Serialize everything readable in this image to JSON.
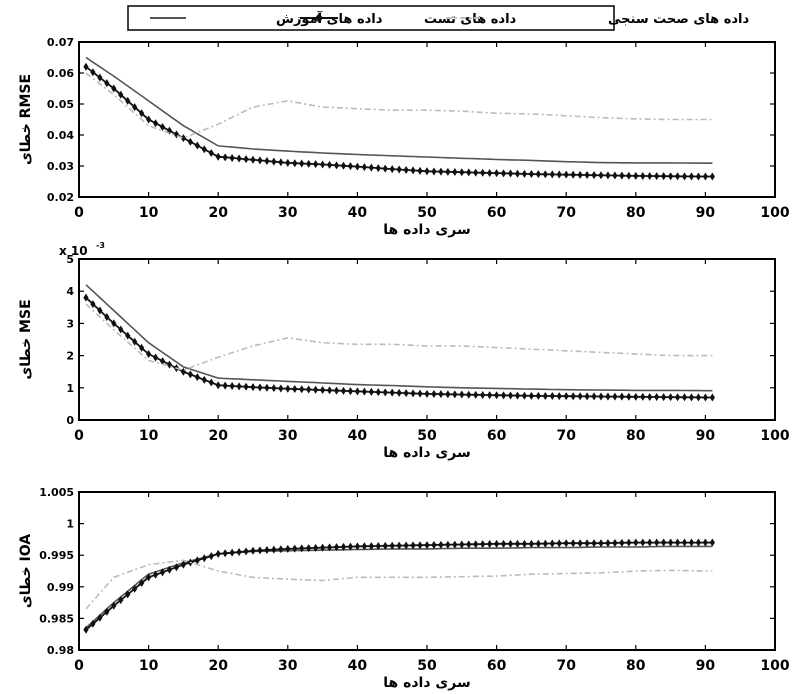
{
  "legend": {
    "items": [
      {
        "label": "داده های آموزش",
        "color": "#555555",
        "style": "solid"
      },
      {
        "label": "داده های تست",
        "color": "#111111",
        "style": "diamond-markers"
      },
      {
        "label": "داده های صحت سنجی",
        "color": "#bbbbbb",
        "style": "dash-dot"
      }
    ]
  },
  "chart_data": [
    {
      "type": "line",
      "title": "",
      "xlabel": "سری داده ها",
      "ylabel": "خطای RMSE",
      "xlim": [
        0,
        100
      ],
      "ylim": [
        0.02,
        0.07
      ],
      "xticks": [
        "0",
        "10",
        "20",
        "30",
        "40",
        "50",
        "60",
        "70",
        "80",
        "90",
        "100"
      ],
      "yticks": [
        "0.02",
        "0.03",
        "0.04",
        "0.05",
        "0.06",
        "0.07"
      ],
      "exponent_label": "",
      "grid": false,
      "x": [
        1,
        5,
        10,
        15,
        20,
        25,
        30,
        35,
        40,
        45,
        50,
        55,
        60,
        65,
        70,
        75,
        80,
        85,
        90,
        91
      ],
      "series": [
        {
          "name": "داده های آموزش",
          "values": [
            0.065,
            0.059,
            0.051,
            0.043,
            0.0365,
            0.0355,
            0.0348,
            0.0342,
            0.0337,
            0.0333,
            0.0329,
            0.0325,
            0.0321,
            0.0318,
            0.0314,
            0.0311,
            0.031,
            0.031,
            0.0309,
            0.0309
          ]
        },
        {
          "name": "داده های تست",
          "values": [
            0.062,
            0.055,
            0.045,
            0.039,
            0.033,
            0.032,
            0.031,
            0.0305,
            0.0298,
            0.029,
            0.0283,
            0.028,
            0.0277,
            0.0274,
            0.0272,
            0.027,
            0.0268,
            0.0267,
            0.0266,
            0.0266
          ]
        },
        {
          "name": "داده های صحت سنجی",
          "values": [
            0.06,
            0.053,
            0.043,
            0.039,
            0.0435,
            0.049,
            0.051,
            0.049,
            0.0485,
            0.048,
            0.048,
            0.0477,
            0.047,
            0.0468,
            0.0462,
            0.0456,
            0.0452,
            0.045,
            0.045,
            0.045
          ]
        }
      ]
    },
    {
      "type": "line",
      "title": "",
      "xlabel": "سری داده ها",
      "ylabel": "خطای MSE",
      "xlim": [
        0,
        100
      ],
      "ylim": [
        0,
        5
      ],
      "xticks": [
        "0",
        "10",
        "20",
        "30",
        "40",
        "50",
        "60",
        "70",
        "80",
        "90",
        "100"
      ],
      "yticks": [
        "0",
        "1",
        "2",
        "3",
        "4",
        "5"
      ],
      "exponent_label": "x 10",
      "exponent_power": "-3",
      "grid": false,
      "x": [
        1,
        5,
        10,
        15,
        20,
        25,
        30,
        35,
        40,
        45,
        50,
        55,
        60,
        65,
        70,
        75,
        80,
        85,
        90,
        91
      ],
      "series": [
        {
          "name": "داده های آموزش",
          "values": [
            4.2,
            3.4,
            2.4,
            1.65,
            1.3,
            1.25,
            1.2,
            1.15,
            1.1,
            1.07,
            1.03,
            1.0,
            0.98,
            0.96,
            0.94,
            0.93,
            0.92,
            0.92,
            0.91,
            0.91
          ]
        },
        {
          "name": "داده های تست",
          "values": [
            3.8,
            3.0,
            2.05,
            1.5,
            1.08,
            1.02,
            0.97,
            0.93,
            0.89,
            0.85,
            0.81,
            0.79,
            0.77,
            0.75,
            0.74,
            0.73,
            0.72,
            0.71,
            0.7,
            0.7
          ]
        },
        {
          "name": "داده های صحت سنجی",
          "values": [
            3.6,
            2.8,
            1.85,
            1.55,
            1.95,
            2.3,
            2.55,
            2.4,
            2.35,
            2.35,
            2.3,
            2.3,
            2.25,
            2.2,
            2.15,
            2.1,
            2.05,
            2.0,
            2.0,
            2.0
          ]
        }
      ]
    },
    {
      "type": "line",
      "title": "",
      "xlabel": "سری داده ها",
      "ylabel": "خطای IOA",
      "xlim": [
        0,
        100
      ],
      "ylim": [
        0.98,
        1.005
      ],
      "xticks": [
        "0",
        "10",
        "20",
        "30",
        "40",
        "50",
        "60",
        "70",
        "80",
        "90",
        "100"
      ],
      "yticks": [
        "0.98",
        "0.985",
        "0.99",
        "0.995",
        "1",
        "1.005"
      ],
      "exponent_label": "",
      "grid": false,
      "x": [
        1,
        5,
        10,
        15,
        20,
        25,
        30,
        35,
        40,
        45,
        50,
        55,
        60,
        65,
        70,
        75,
        80,
        85,
        90,
        91
      ],
      "series": [
        {
          "name": "داده های آموزش",
          "values": [
            0.9835,
            0.9875,
            0.992,
            0.9938,
            0.9952,
            0.9956,
            0.9957,
            0.9958,
            0.9959,
            0.996,
            0.996,
            0.9961,
            0.9961,
            0.9962,
            0.9962,
            0.9963,
            0.9963,
            0.9964,
            0.9964,
            0.9964
          ]
        },
        {
          "name": "داده های تست",
          "values": [
            0.9832,
            0.987,
            0.9915,
            0.9935,
            0.9952,
            0.9957,
            0.996,
            0.9962,
            0.9964,
            0.9965,
            0.9966,
            0.9967,
            0.9968,
            0.9968,
            0.9969,
            0.9969,
            0.997,
            0.997,
            0.997,
            0.997
          ]
        },
        {
          "name": "داده های صحت سنجی",
          "values": [
            0.9865,
            0.9915,
            0.9935,
            0.9942,
            0.9925,
            0.9915,
            0.9912,
            0.991,
            0.9915,
            0.9915,
            0.9915,
            0.9916,
            0.9917,
            0.992,
            0.9921,
            0.9922,
            0.9925,
            0.9926,
            0.9925,
            0.9925
          ]
        }
      ]
    }
  ]
}
